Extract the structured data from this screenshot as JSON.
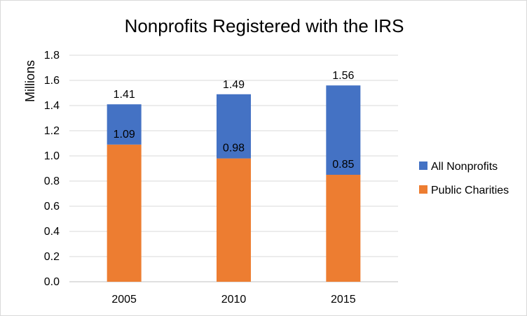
{
  "chart_data": {
    "type": "bar",
    "stacked": true,
    "title": "Nonprofits Registered with the IRS",
    "xlabel": "",
    "ylabel": "Millions",
    "categories": [
      "2005",
      "2010",
      "2015"
    ],
    "ylim": [
      0,
      1.8
    ],
    "yticks": [
      "0.0",
      "0.2",
      "0.4",
      "0.6",
      "0.8",
      "1.0",
      "1.2",
      "1.4",
      "1.6",
      "1.8"
    ],
    "grid": true,
    "legend": "right",
    "series": [
      {
        "name": "Public Charities",
        "values": [
          1.09,
          0.98,
          0.85
        ],
        "labels": [
          "1.09",
          "0.98",
          "0.85"
        ],
        "color": "#ED7D31"
      },
      {
        "name": "All Nonprofits",
        "values": [
          0.32,
          0.51,
          0.71
        ],
        "totals": [
          1.41,
          1.49,
          1.56
        ],
        "labels": [
          "1.41",
          "1.49",
          "1.56"
        ],
        "color": "#4472C4"
      }
    ],
    "legend_order": [
      "All Nonprofits",
      "Public Charities"
    ]
  }
}
